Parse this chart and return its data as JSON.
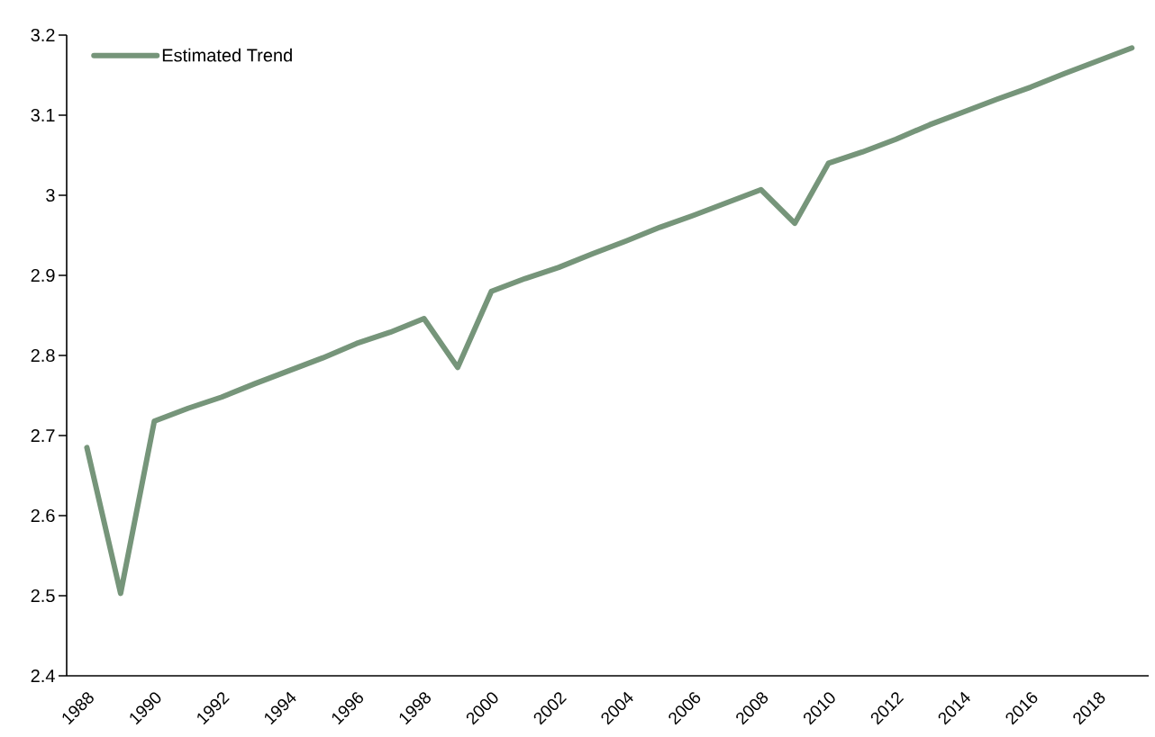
{
  "chart_data": {
    "type": "line",
    "x": [
      1988,
      1989,
      1990,
      1991,
      1992,
      1993,
      1994,
      1995,
      1996,
      1997,
      1998,
      1999,
      2000,
      2001,
      2002,
      2003,
      2004,
      2005,
      2006,
      2007,
      2008,
      2009,
      2010,
      2011,
      2012,
      2013,
      2014,
      2015,
      2016,
      2017,
      2018,
      2019
    ],
    "series": [
      {
        "name": "Estimated Trend",
        "color": "#76957a",
        "values": [
          2.685,
          2.503,
          2.718,
          2.734,
          2.748,
          2.765,
          2.781,
          2.797,
          2.815,
          2.829,
          2.846,
          2.785,
          2.88,
          2.896,
          2.91,
          2.927,
          2.943,
          2.96,
          2.975,
          2.991,
          3.007,
          2.965,
          3.04,
          3.054,
          3.07,
          3.088,
          3.104,
          3.12,
          3.135,
          3.152,
          3.168,
          3.184
        ]
      }
    ],
    "xlim": [
      1987.4,
      2019.5
    ],
    "xticks": [
      1988,
      1990,
      1992,
      1994,
      1996,
      1998,
      2000,
      2002,
      2004,
      2006,
      2008,
      2010,
      2012,
      2014,
      2016,
      2018
    ],
    "ylim": [
      2.4,
      3.2
    ],
    "yticks": [
      2.4,
      2.5,
      2.6,
      2.7,
      2.8,
      2.9,
      3,
      3.1,
      3.2
    ],
    "legend": "top left",
    "grid": false,
    "marker": "none",
    "line_style": "solid"
  }
}
